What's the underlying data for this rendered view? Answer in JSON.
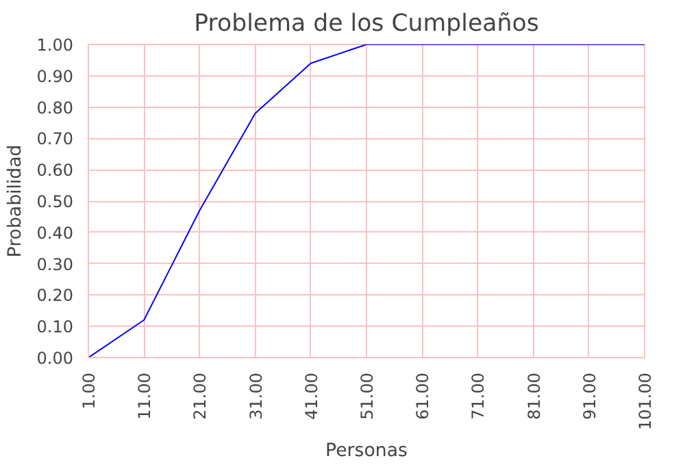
{
  "chart_data": {
    "type": "line",
    "title": "Problema de los Cumpleaños",
    "xlabel": "Personas",
    "ylabel": "Probabilidad",
    "x": [
      1,
      11,
      21,
      31,
      41,
      51,
      61,
      71,
      81,
      91,
      101
    ],
    "series": [
      {
        "color": "#0000ff",
        "values": [
          0,
          0.12,
          0.47,
          0.78,
          0.94,
          1.0,
          1.0,
          1.0,
          1.0,
          1.0,
          1.0
        ]
      }
    ],
    "xlim": [
      1,
      101
    ],
    "ylim": [
      0,
      1
    ],
    "xticks": [
      {
        "value": 1,
        "label": "1.00"
      },
      {
        "value": 11,
        "label": "11.00"
      },
      {
        "value": 21,
        "label": "21.00"
      },
      {
        "value": 31,
        "label": "31.00"
      },
      {
        "value": 41,
        "label": "41.00"
      },
      {
        "value": 51,
        "label": "51.00"
      },
      {
        "value": 61,
        "label": "61.00"
      },
      {
        "value": 71,
        "label": "71.00"
      },
      {
        "value": 81,
        "label": "81.00"
      },
      {
        "value": 91,
        "label": "91.00"
      },
      {
        "value": 101,
        "label": "101.00"
      }
    ],
    "yticks": [
      {
        "value": 0,
        "label": "0.00"
      },
      {
        "value": 0.1,
        "label": "0.10"
      },
      {
        "value": 0.2,
        "label": "0.20"
      },
      {
        "value": 0.3,
        "label": "0.30"
      },
      {
        "value": 0.4,
        "label": "0.40"
      },
      {
        "value": 0.5,
        "label": "0.50"
      },
      {
        "value": 0.6,
        "label": "0.60"
      },
      {
        "value": 0.7,
        "label": "0.70"
      },
      {
        "value": 0.8,
        "label": "0.80"
      },
      {
        "value": 0.9,
        "label": "0.90"
      },
      {
        "value": 1.0,
        "label": "1.00"
      }
    ],
    "grid": true,
    "marker": "none",
    "line_style": "solid"
  }
}
